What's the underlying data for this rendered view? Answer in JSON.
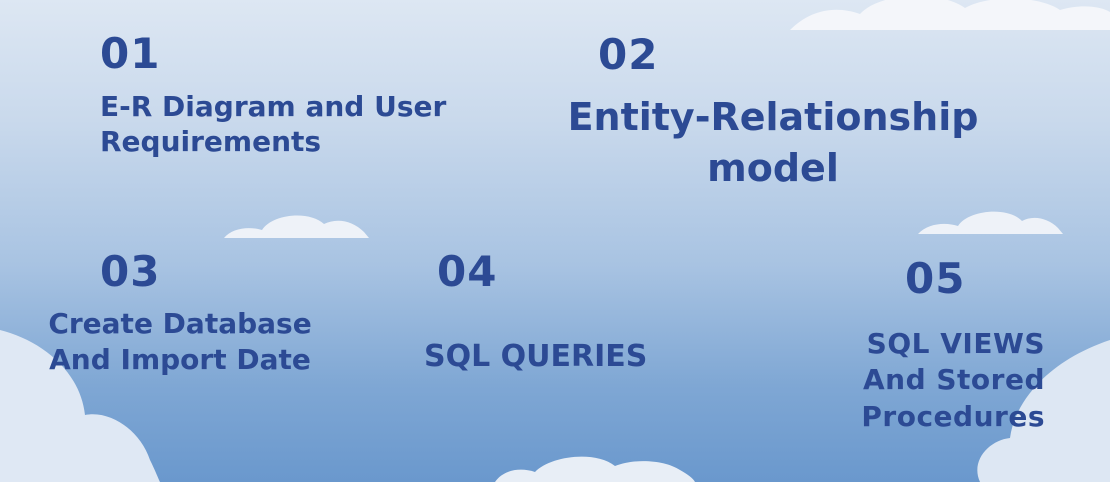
{
  "sections": [
    {
      "number": "01",
      "title": "E-R Diagram and User Requirements"
    },
    {
      "number": "02",
      "title": "Entity-Relationship model"
    },
    {
      "number": "03",
      "title": "Create Database And Import Date"
    },
    {
      "number": "04",
      "title": "SQL QUERIES"
    },
    {
      "number": "05",
      "title": "SQL VIEWS And Stored Procedures"
    }
  ],
  "colors": {
    "text": "#2c4a94",
    "background_top": "#dde7f3",
    "background_bottom": "#6a98cd"
  }
}
